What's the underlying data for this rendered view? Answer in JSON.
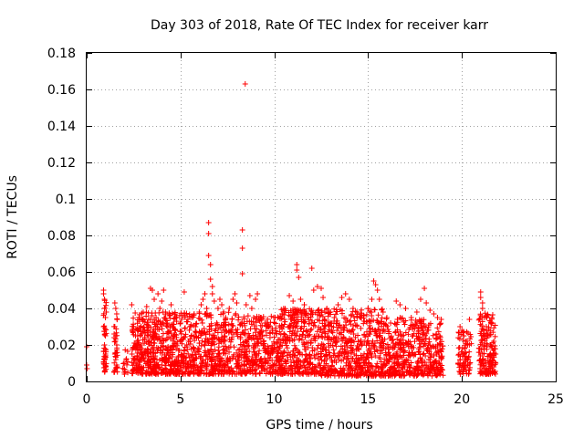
{
  "chart_data": {
    "type": "scatter",
    "title": "Day 303 of 2018, Rate Of TEC Index for receiver karr",
    "xlabel": "GPS time / hours",
    "ylabel": "ROTI / TECUs",
    "xlim": [
      0,
      25
    ],
    "ylim": [
      0,
      0.18
    ],
    "xticks": [
      0,
      5,
      10,
      15,
      20,
      25
    ],
    "xtick_labels": [
      "0",
      "5",
      "10",
      "15",
      "20",
      "25"
    ],
    "yticks": [
      0,
      0.02,
      0.04,
      0.06,
      0.08,
      0.1,
      0.12,
      0.14,
      0.16,
      0.18
    ],
    "ytick_labels": [
      "0",
      "0.02",
      "0.04",
      "0.06",
      "0.08",
      "0.1",
      "0.12",
      "0.14",
      "0.16",
      "0.18"
    ],
    "grid": true,
    "marker": "+",
    "marker_color": "#ff0000",
    "series": [
      {
        "points": [
          [
            0.0,
            0.019
          ],
          [
            0.0,
            0.009
          ],
          [
            0.02,
            0.007
          ],
          [
            0.9,
            0.05
          ],
          [
            0.9,
            0.048
          ],
          [
            0.95,
            0.045
          ],
          [
            0.95,
            0.04
          ],
          [
            1.0,
            0.035
          ],
          [
            0.9,
            0.03
          ],
          [
            1.0,
            0.025
          ],
          [
            0.95,
            0.02
          ],
          [
            1.0,
            0.015
          ],
          [
            0.9,
            0.01
          ],
          [
            1.0,
            0.008
          ],
          [
            0.95,
            0.012
          ],
          [
            1.5,
            0.043
          ],
          [
            1.55,
            0.04
          ],
          [
            1.6,
            0.037
          ],
          [
            1.5,
            0.03
          ],
          [
            1.55,
            0.025
          ],
          [
            1.6,
            0.02
          ],
          [
            1.5,
            0.015
          ],
          [
            1.55,
            0.012
          ],
          [
            1.6,
            0.009
          ],
          [
            2.0,
            0.01
          ],
          [
            2.0,
            0.005
          ],
          [
            2.1,
            0.012
          ],
          [
            2.4,
            0.042
          ],
          [
            2.5,
            0.03
          ],
          [
            2.6,
            0.025
          ],
          [
            2.7,
            0.022
          ],
          [
            2.8,
            0.035
          ],
          [
            2.9,
            0.02
          ],
          [
            3.0,
            0.033
          ],
          [
            3.1,
            0.028
          ],
          [
            3.2,
            0.041
          ],
          [
            3.3,
            0.03
          ],
          [
            3.4,
            0.051
          ],
          [
            3.5,
            0.05
          ],
          [
            3.6,
            0.045
          ],
          [
            3.7,
            0.035
          ],
          [
            3.8,
            0.048
          ],
          [
            3.9,
            0.04
          ],
          [
            4.0,
            0.044
          ],
          [
            4.1,
            0.05
          ],
          [
            4.2,
            0.038
          ],
          [
            4.3,
            0.032
          ],
          [
            4.4,
            0.036
          ],
          [
            4.5,
            0.042
          ],
          [
            4.6,
            0.03
          ],
          [
            4.7,
            0.028
          ],
          [
            4.8,
            0.035
          ],
          [
            5.0,
            0.032
          ],
          [
            5.2,
            0.049
          ],
          [
            5.4,
            0.034
          ],
          [
            5.5,
            0.03
          ],
          [
            5.6,
            0.035
          ],
          [
            5.8,
            0.03
          ],
          [
            6.0,
            0.038
          ],
          [
            6.1,
            0.042
          ],
          [
            6.2,
            0.045
          ],
          [
            6.3,
            0.048
          ],
          [
            6.4,
            0.04
          ],
          [
            6.5,
            0.087
          ],
          [
            6.5,
            0.081
          ],
          [
            6.5,
            0.069
          ],
          [
            6.6,
            0.064
          ],
          [
            6.6,
            0.056
          ],
          [
            6.7,
            0.052
          ],
          [
            6.7,
            0.048
          ],
          [
            6.8,
            0.044
          ],
          [
            7.0,
            0.04
          ],
          [
            7.1,
            0.045
          ],
          [
            7.2,
            0.042
          ],
          [
            7.3,
            0.038
          ],
          [
            7.4,
            0.035
          ],
          [
            7.6,
            0.04
          ],
          [
            7.8,
            0.045
          ],
          [
            7.9,
            0.048
          ],
          [
            8.0,
            0.043
          ],
          [
            8.3,
            0.083
          ],
          [
            8.3,
            0.073
          ],
          [
            8.3,
            0.059
          ],
          [
            8.45,
            0.163
          ],
          [
            8.5,
            0.042
          ],
          [
            8.7,
            0.047
          ],
          [
            8.8,
            0.04
          ],
          [
            8.9,
            0.035
          ],
          [
            9.0,
            0.045
          ],
          [
            9.1,
            0.048
          ],
          [
            9.3,
            0.035
          ],
          [
            9.5,
            0.032
          ],
          [
            9.7,
            0.03
          ],
          [
            9.9,
            0.028
          ],
          [
            10.2,
            0.035
          ],
          [
            10.5,
            0.04
          ],
          [
            10.8,
            0.047
          ],
          [
            11.0,
            0.044
          ],
          [
            11.2,
            0.064
          ],
          [
            11.2,
            0.061
          ],
          [
            11.3,
            0.057
          ],
          [
            11.4,
            0.045
          ],
          [
            11.6,
            0.042
          ],
          [
            11.8,
            0.035
          ],
          [
            12.0,
            0.062
          ],
          [
            12.1,
            0.05
          ],
          [
            12.3,
            0.052
          ],
          [
            12.5,
            0.051
          ],
          [
            12.6,
            0.046
          ],
          [
            12.8,
            0.04
          ],
          [
            13.0,
            0.038
          ],
          [
            13.2,
            0.035
          ],
          [
            13.4,
            0.042
          ],
          [
            13.6,
            0.046
          ],
          [
            13.8,
            0.048
          ],
          [
            14.0,
            0.045
          ],
          [
            14.2,
            0.04
          ],
          [
            14.4,
            0.038
          ],
          [
            14.6,
            0.035
          ],
          [
            14.8,
            0.033
          ],
          [
            15.0,
            0.04
          ],
          [
            15.2,
            0.045
          ],
          [
            15.3,
            0.055
          ],
          [
            15.4,
            0.053
          ],
          [
            15.5,
            0.05
          ],
          [
            15.6,
            0.045
          ],
          [
            15.8,
            0.038
          ],
          [
            16.0,
            0.035
          ],
          [
            16.2,
            0.032
          ],
          [
            16.5,
            0.044
          ],
          [
            16.7,
            0.042
          ],
          [
            17.0,
            0.04
          ],
          [
            17.3,
            0.035
          ],
          [
            17.6,
            0.038
          ],
          [
            17.8,
            0.045
          ],
          [
            18.0,
            0.051
          ],
          [
            18.1,
            0.043
          ],
          [
            18.3,
            0.039
          ],
          [
            18.5,
            0.037
          ],
          [
            18.7,
            0.035
          ],
          [
            18.9,
            0.034
          ],
          [
            19.9,
            0.03
          ],
          [
            20.0,
            0.028
          ],
          [
            20.1,
            0.025
          ],
          [
            20.2,
            0.022
          ],
          [
            20.3,
            0.02
          ],
          [
            20.4,
            0.034
          ],
          [
            21.0,
            0.049
          ],
          [
            21.0,
            0.046
          ],
          [
            21.1,
            0.043
          ],
          [
            21.1,
            0.04
          ],
          [
            21.2,
            0.035
          ],
          [
            21.3,
            0.03
          ],
          [
            21.4,
            0.025
          ],
          [
            21.5,
            0.02
          ],
          [
            21.6,
            0.032
          ],
          [
            21.7,
            0.022
          ],
          [
            21.8,
            0.015
          ],
          [
            21.8,
            0.01
          ],
          [
            21.7,
            0.008
          ]
        ],
        "bands": [
          {
            "x0": 0.9,
            "x1": 1.05,
            "ymin": 0.005,
            "ymax": 0.045,
            "n": 40
          },
          {
            "x0": 1.45,
            "x1": 1.65,
            "ymin": 0.005,
            "ymax": 0.035,
            "n": 30
          },
          {
            "x0": 1.9,
            "x1": 2.2,
            "ymin": 0.004,
            "ymax": 0.02,
            "n": 12
          },
          {
            "x0": 2.4,
            "x1": 5.0,
            "ymin": 0.004,
            "ymax": 0.038,
            "n": 480
          },
          {
            "x0": 5.0,
            "x1": 8.2,
            "ymin": 0.004,
            "ymax": 0.038,
            "n": 480
          },
          {
            "x0": 8.2,
            "x1": 10.2,
            "ymin": 0.004,
            "ymax": 0.036,
            "n": 300
          },
          {
            "x0": 10.2,
            "x1": 12.5,
            "ymin": 0.004,
            "ymax": 0.04,
            "n": 380
          },
          {
            "x0": 12.5,
            "x1": 15.8,
            "ymin": 0.003,
            "ymax": 0.04,
            "n": 520
          },
          {
            "x0": 15.8,
            "x1": 18.0,
            "ymin": 0.003,
            "ymax": 0.035,
            "n": 340
          },
          {
            "x0": 18.0,
            "x1": 19.0,
            "ymin": 0.003,
            "ymax": 0.032,
            "n": 140
          },
          {
            "x0": 19.8,
            "x1": 20.5,
            "ymin": 0.004,
            "ymax": 0.028,
            "n": 80
          },
          {
            "x0": 20.9,
            "x1": 21.8,
            "ymin": 0.004,
            "ymax": 0.038,
            "n": 160
          }
        ]
      }
    ]
  }
}
